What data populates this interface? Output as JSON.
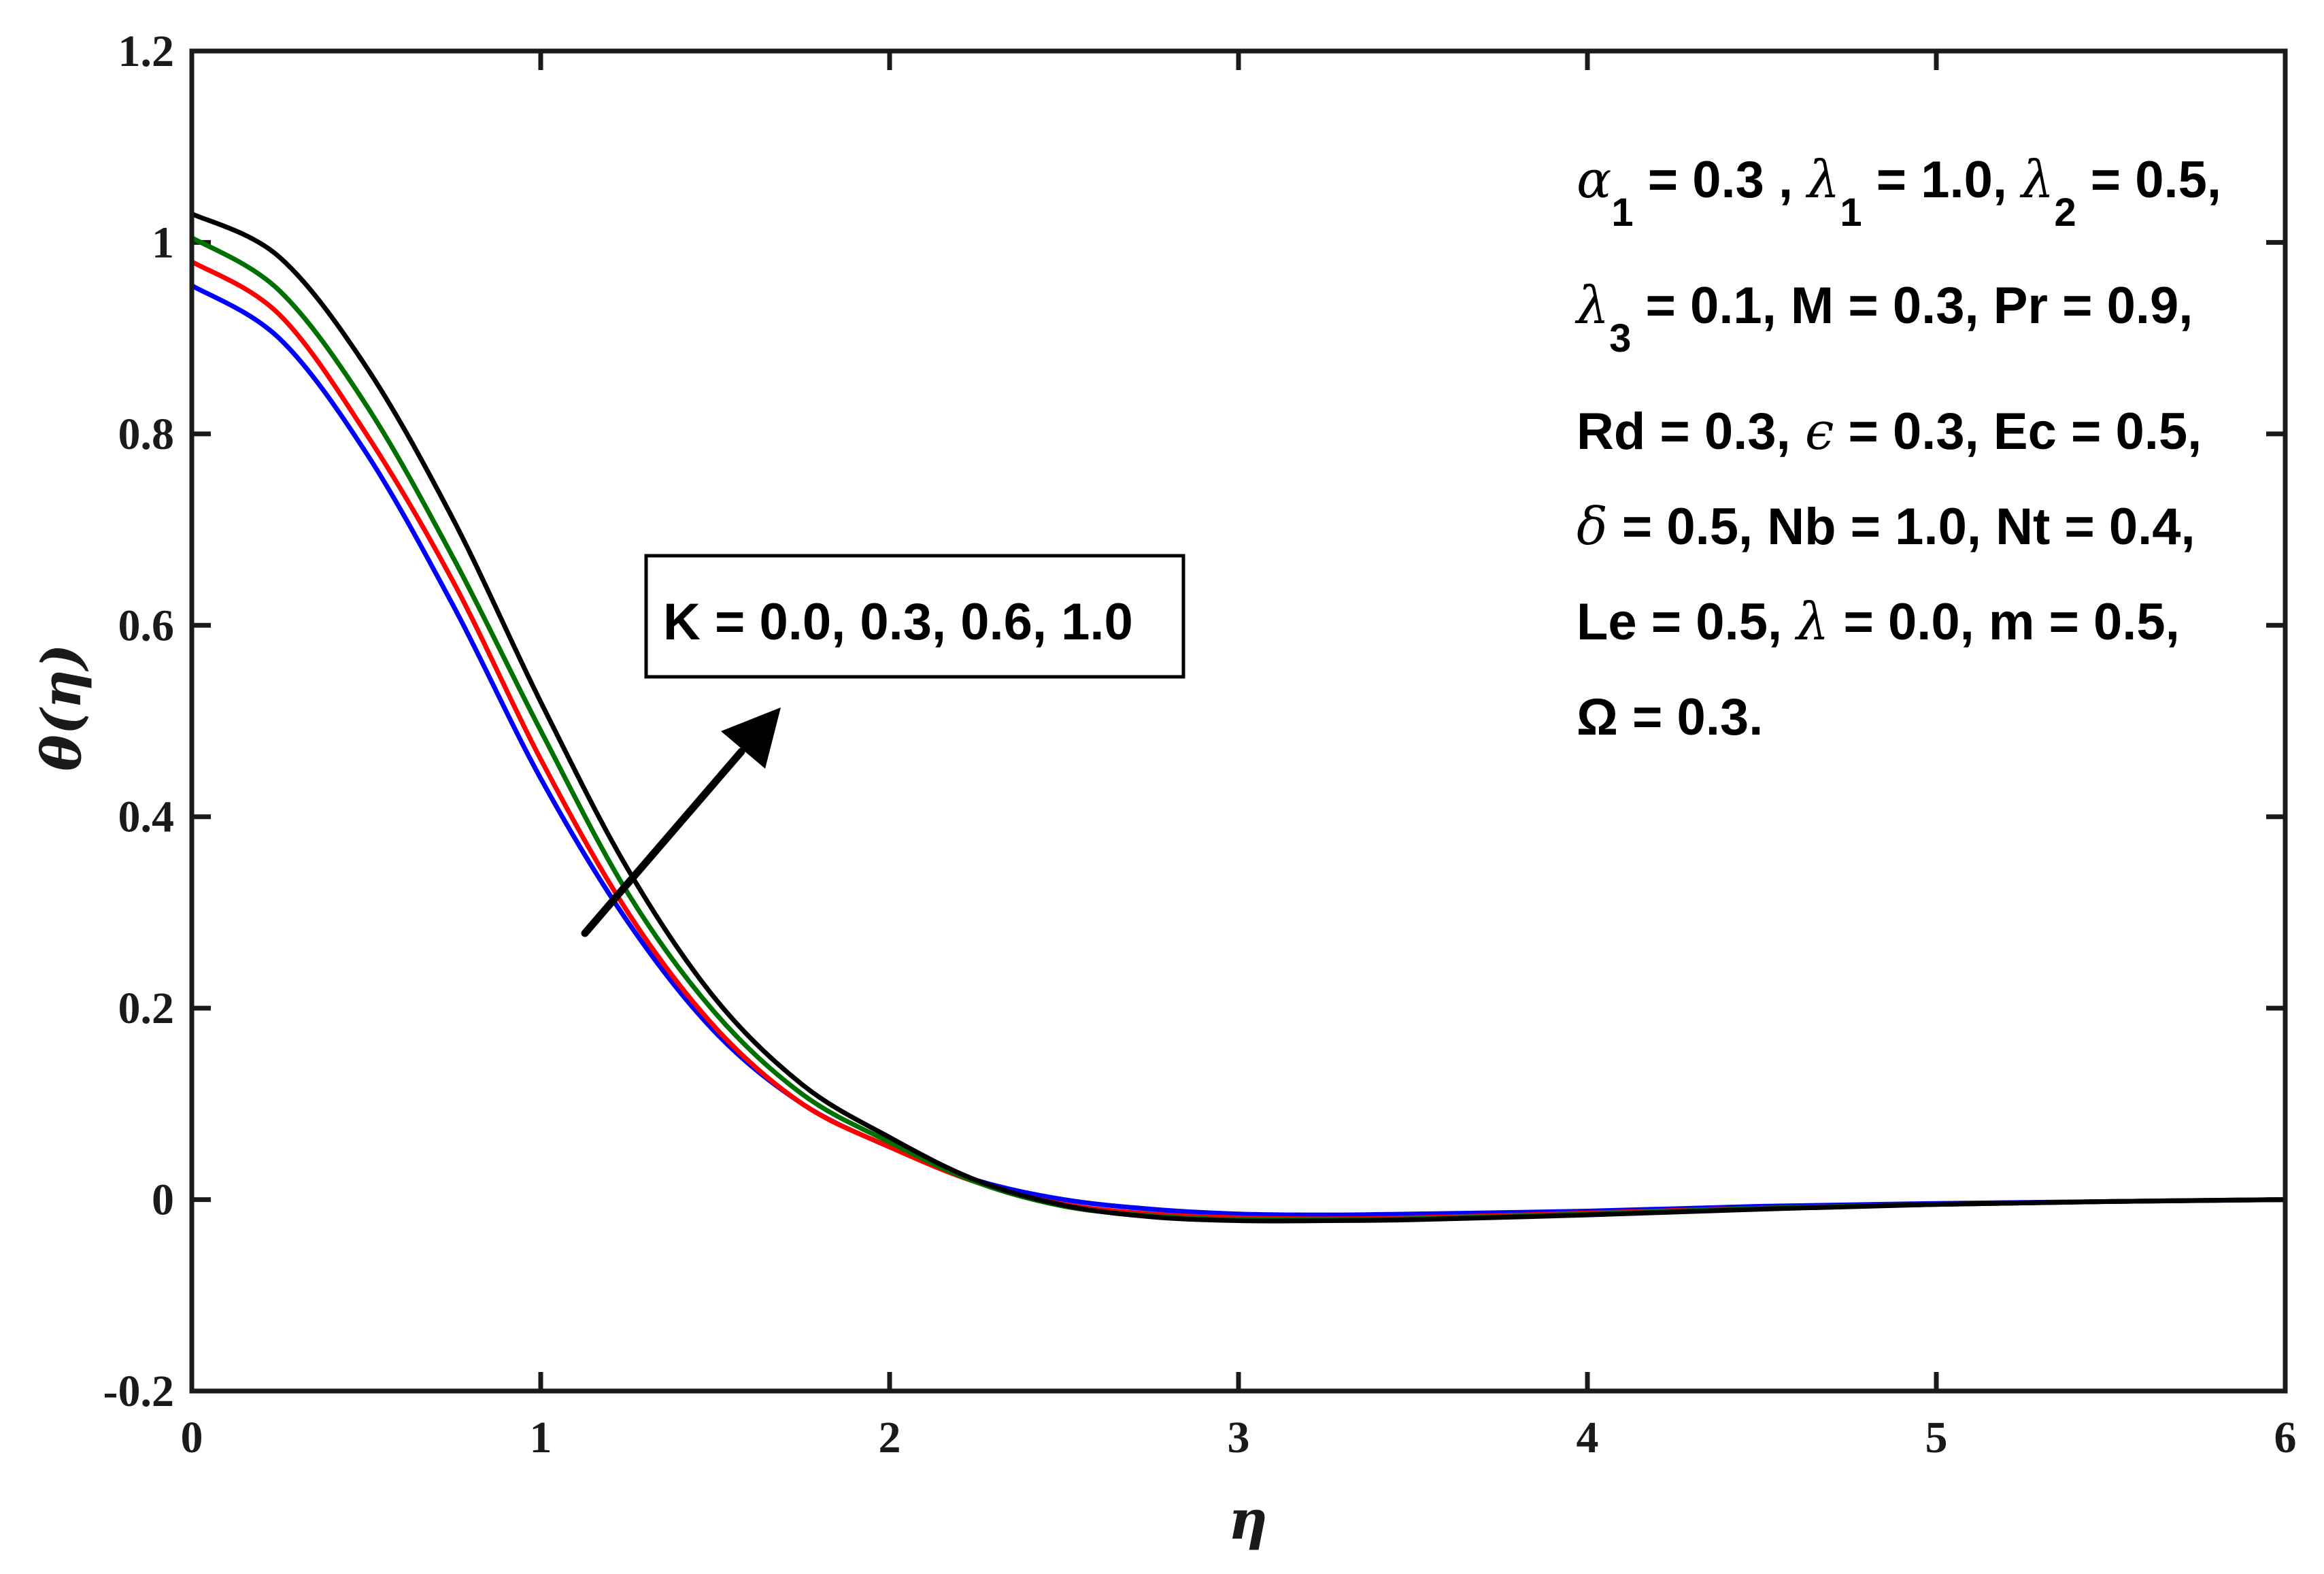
{
  "chart_data": {
    "type": "line",
    "title": "",
    "xlabel": "η",
    "ylabel": "θ(η)",
    "xlim": [
      0,
      6
    ],
    "ylim": [
      -0.2,
      1.2
    ],
    "xticks": [
      0,
      1,
      2,
      3,
      4,
      5,
      6
    ],
    "xtick_labels": [
      "0",
      "1",
      "2",
      "3",
      "4",
      "5",
      "6"
    ],
    "yticks": [
      -0.2,
      0,
      0.2,
      0.4,
      0.6,
      0.8,
      1,
      1.2
    ],
    "ytick_labels": [
      "-0.2",
      "0",
      "0.2",
      "0.4",
      "0.6",
      "0.8",
      "1",
      "1.2"
    ],
    "grid": false,
    "legend": "none",
    "x": [
      0,
      0.25,
      0.5,
      0.75,
      1.0,
      1.25,
      1.5,
      1.75,
      2.0,
      2.25,
      2.5,
      2.75,
      3.0,
      3.25,
      3.5,
      4.0,
      4.5,
      5.0,
      5.5,
      6.0
    ],
    "series": [
      {
        "color": "#0000ff",
        "values": [
          0.955,
          0.9,
          0.78,
          0.62,
          0.44,
          0.29,
          0.175,
          0.1,
          0.055,
          0.02,
          0.0,
          -0.01,
          -0.015,
          -0.016,
          -0.015,
          -0.012,
          -0.007,
          -0.004,
          -0.002,
          0.0
        ]
      },
      {
        "color": "#ff0000",
        "values": [
          0.98,
          0.925,
          0.8,
          0.645,
          0.46,
          0.3,
          0.18,
          0.1,
          0.055,
          0.018,
          -0.005,
          -0.015,
          -0.019,
          -0.02,
          -0.019,
          -0.014,
          -0.009,
          -0.005,
          -0.002,
          0.0
        ]
      },
      {
        "color": "#007000",
        "values": [
          1.005,
          0.95,
          0.83,
          0.67,
          0.49,
          0.32,
          0.195,
          0.11,
          0.06,
          0.018,
          -0.007,
          -0.017,
          -0.021,
          -0.021,
          -0.02,
          -0.015,
          -0.009,
          -0.005,
          -0.002,
          0.0
        ]
      },
      {
        "color": "#000000",
        "values": [
          1.03,
          0.985,
          0.87,
          0.71,
          0.52,
          0.345,
          0.21,
          0.12,
          0.065,
          0.02,
          -0.006,
          -0.018,
          -0.022,
          -0.022,
          -0.021,
          -0.016,
          -0.01,
          -0.005,
          -0.002,
          0.0
        ]
      }
    ],
    "annotation_box": "K = 0.0, 0.3, 0.6, 1.0",
    "parameters": {
      "line1": {
        "alpha": "α",
        "sub1": "1",
        "a": " = 0.3 , ",
        "lambda1": "λ",
        "sub2": "1",
        "b": " = 1.0, ",
        "lambda2": "λ",
        "sub3": "2",
        "c": " = 0.5,"
      },
      "line2": {
        "lambda3": "λ",
        "sub": "3",
        "rest": " = 0.1, M = 0.3, Pr = 0.9,"
      },
      "line3": {
        "a": "Rd = 0.3, ",
        "eps": "ϵ",
        "b": " = 0.3, Ec = 0.5,"
      },
      "line4": {
        "delta": "δ",
        "rest": " = 0.5, Nb = 1.0, Nt = 0.4,"
      },
      "line5": {
        "a": "Le = 0.5, ",
        "lambda": "λ",
        "b": " = 0.0, m = 0.5,"
      },
      "line6": "Ω = 0.3."
    }
  }
}
